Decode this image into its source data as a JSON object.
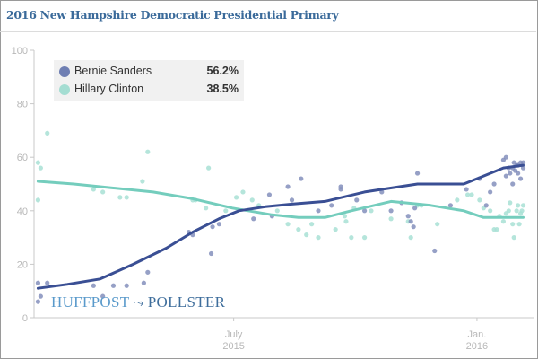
{
  "header": {
    "title": "2016 New Hampshire Democratic Presidential Primary"
  },
  "legend": {
    "items": [
      {
        "name": "Bernie Sanders",
        "value": "56.2%",
        "color": "#6f7fb3"
      },
      {
        "name": "Hillary Clinton",
        "value": "38.5%",
        "color": "#a4ddd2"
      }
    ]
  },
  "branding": {
    "huffpost": "HUFFPOST",
    "mark": "⤳",
    "pollster": "POLLSTER"
  },
  "colors": {
    "sanders_line": "#3a4f94",
    "sanders_dot": "#7c88b8",
    "clinton_line": "#74cdbd",
    "clinton_dot": "#a8e0d5",
    "axis": "#c8c8c8"
  },
  "chart_data": {
    "type": "scatter",
    "title": "2016 New Hampshire Democratic Presidential Primary",
    "xlabel": "",
    "ylabel": "",
    "x_unit": "days since 2015-01-01",
    "xlim": [
      30,
      401
    ],
    "ylim": [
      0,
      100
    ],
    "y_ticks": [
      0,
      20,
      40,
      60,
      80,
      100
    ],
    "x_ticks": [
      {
        "x": 181,
        "label_line1": "July",
        "label_line2": "2015"
      },
      {
        "x": 365,
        "label_line1": "Jan.",
        "label_line2": "2016"
      }
    ],
    "grid": false,
    "legend_position": "top-left",
    "series": [
      {
        "name": "Bernie Sanders",
        "trend": [
          [
            33,
            11
          ],
          [
            55,
            12.5
          ],
          [
            80,
            14.5
          ],
          [
            105,
            20
          ],
          [
            130,
            26
          ],
          [
            150,
            32
          ],
          [
            170,
            37
          ],
          [
            185,
            40
          ],
          [
            205,
            41.5
          ],
          [
            225,
            42.5
          ],
          [
            250,
            43.5
          ],
          [
            280,
            47
          ],
          [
            320,
            50
          ],
          [
            355,
            50
          ],
          [
            370,
            53
          ],
          [
            385,
            56
          ],
          [
            400,
            57
          ]
        ],
        "points": [
          [
            33,
            13
          ],
          [
            35,
            8
          ],
          [
            33,
            6
          ],
          [
            40,
            13
          ],
          [
            75,
            12
          ],
          [
            82,
            8
          ],
          [
            90,
            12
          ],
          [
            100,
            12
          ],
          [
            113,
            13
          ],
          [
            116,
            17
          ],
          [
            147,
            32
          ],
          [
            150,
            31
          ],
          [
            164,
            24
          ],
          [
            170,
            35
          ],
          [
            165,
            34
          ],
          [
            196,
            37
          ],
          [
            208,
            46
          ],
          [
            210,
            38
          ],
          [
            225,
            44
          ],
          [
            222,
            49
          ],
          [
            232,
            52
          ],
          [
            245,
            40
          ],
          [
            255,
            42
          ],
          [
            262,
            48
          ],
          [
            262,
            49
          ],
          [
            274,
            44
          ],
          [
            280,
            40
          ],
          [
            293,
            47
          ],
          [
            300,
            40
          ],
          [
            308,
            43
          ],
          [
            313,
            38
          ],
          [
            315,
            36
          ],
          [
            317,
            34
          ],
          [
            318,
            41
          ],
          [
            320,
            54
          ],
          [
            333,
            25
          ],
          [
            345,
            42
          ],
          [
            357,
            48
          ],
          [
            367,
            52
          ],
          [
            372,
            42
          ],
          [
            375,
            47
          ],
          [
            378,
            50
          ],
          [
            385,
            59
          ],
          [
            387,
            60
          ],
          [
            390,
            54
          ],
          [
            392,
            50
          ],
          [
            394,
            55
          ],
          [
            395,
            57
          ],
          [
            396,
            57
          ],
          [
            398,
            52
          ],
          [
            398,
            58
          ],
          [
            400,
            56
          ],
          [
            389,
            56
          ],
          [
            393,
            58
          ],
          [
            396,
            54
          ],
          [
            387,
            53
          ],
          [
            400,
            58
          ],
          [
            392,
            56
          ]
        ]
      },
      {
        "name": "Hillary Clinton",
        "trend": [
          [
            33,
            51
          ],
          [
            60,
            50
          ],
          [
            90,
            48.5
          ],
          [
            120,
            47
          ],
          [
            150,
            44.5
          ],
          [
            180,
            41
          ],
          [
            210,
            38.5
          ],
          [
            230,
            37.5
          ],
          [
            250,
            37.5
          ],
          [
            270,
            40
          ],
          [
            300,
            43.5
          ],
          [
            330,
            42
          ],
          [
            355,
            40
          ],
          [
            370,
            37.5
          ],
          [
            385,
            37.5
          ],
          [
            400,
            37.5
          ]
        ],
        "points": [
          [
            33,
            58
          ],
          [
            35,
            56
          ],
          [
            33,
            44
          ],
          [
            40,
            69
          ],
          [
            75,
            48
          ],
          [
            82,
            47
          ],
          [
            95,
            45
          ],
          [
            100,
            45
          ],
          [
            112,
            51
          ],
          [
            116,
            62
          ],
          [
            150,
            44
          ],
          [
            152,
            44
          ],
          [
            160,
            41
          ],
          [
            162,
            56
          ],
          [
            175,
            40
          ],
          [
            183,
            45
          ],
          [
            188,
            47
          ],
          [
            195,
            44
          ],
          [
            200,
            42
          ],
          [
            214,
            40
          ],
          [
            222,
            35
          ],
          [
            230,
            33
          ],
          [
            236,
            31
          ],
          [
            240,
            35
          ],
          [
            245,
            30
          ],
          [
            258,
            33
          ],
          [
            265,
            38
          ],
          [
            266,
            36
          ],
          [
            270,
            30
          ],
          [
            272,
            41
          ],
          [
            280,
            30
          ],
          [
            285,
            40
          ],
          [
            300,
            37
          ],
          [
            313,
            36
          ],
          [
            315,
            30
          ],
          [
            320,
            42
          ],
          [
            323,
            42
          ],
          [
            335,
            35
          ],
          [
            350,
            44
          ],
          [
            358,
            46
          ],
          [
            361,
            46
          ],
          [
            367,
            44
          ],
          [
            370,
            41
          ],
          [
            375,
            40
          ],
          [
            378,
            33
          ],
          [
            380,
            33
          ],
          [
            382,
            38
          ],
          [
            385,
            36
          ],
          [
            387,
            39
          ],
          [
            390,
            43
          ],
          [
            392,
            35
          ],
          [
            393,
            30
          ],
          [
            395,
            40
          ],
          [
            396,
            42
          ],
          [
            398,
            39
          ],
          [
            399,
            40
          ],
          [
            400,
            42
          ],
          [
            397,
            35
          ],
          [
            389,
            40
          ]
        ]
      }
    ]
  }
}
